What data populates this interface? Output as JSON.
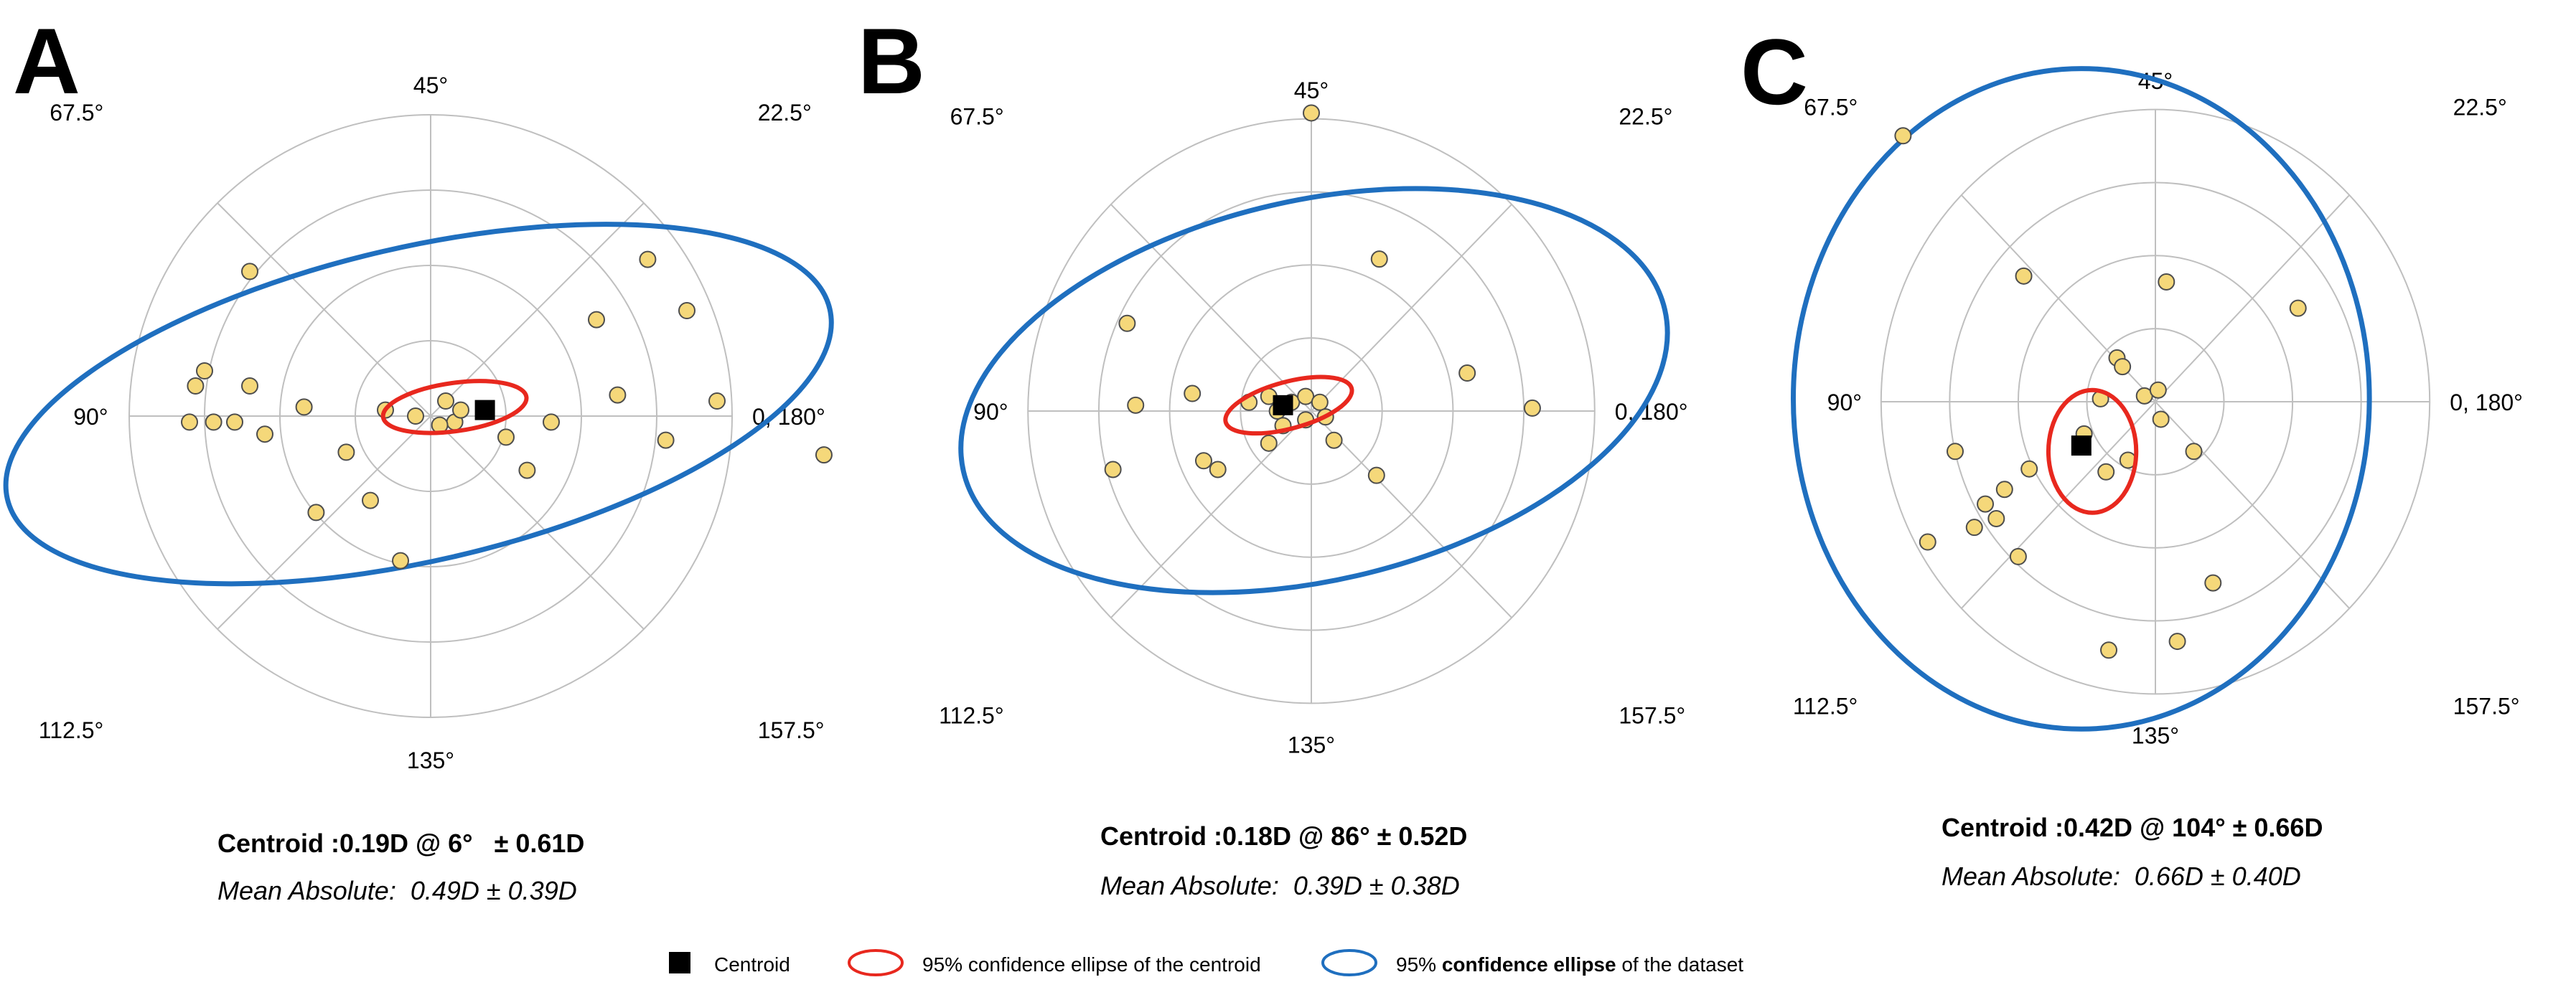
{
  "chart_data": [
    {
      "type": "scatter",
      "panel_label": "A",
      "angle_labels": [
        "0, 180°",
        "22.5°",
        "45°",
        "67.5°",
        "90°",
        "112.5°",
        "135°",
        "157.5°"
      ],
      "radial_ticks": [
        0.25,
        0.5,
        0.75,
        1.0
      ],
      "points": [
        [
          0.95,
          0.05
        ],
        [
          0.85,
          0.35
        ],
        [
          0.72,
          0.52
        ],
        [
          0.78,
          -0.08
        ],
        [
          0.62,
          0.07
        ],
        [
          0.55,
          0.32
        ],
        [
          0.4,
          -0.02
        ],
        [
          0.32,
          -0.18
        ],
        [
          0.25,
          -0.07
        ],
        [
          0.08,
          -0.02
        ],
        [
          0.05,
          0.05
        ],
        [
          -0.05,
          0.0
        ],
        [
          -0.15,
          0.02
        ],
        [
          -0.28,
          -0.12
        ],
        [
          -0.38,
          -0.32
        ],
        [
          -0.42,
          0.03
        ],
        [
          -0.55,
          -0.06
        ],
        [
          -0.6,
          0.1
        ],
        [
          -0.65,
          -0.02
        ],
        [
          -0.72,
          -0.02
        ],
        [
          -0.8,
          -0.02
        ],
        [
          -0.75,
          0.15
        ],
        [
          -0.78,
          0.1
        ],
        [
          -0.6,
          0.48
        ],
        [
          -0.1,
          -0.48
        ],
        [
          -0.2,
          -0.28
        ],
        [
          0.03,
          -0.03
        ],
        [
          0.1,
          0.02
        ]
      ],
      "centroid": {
        "x": 0.18,
        "y": 0.02
      },
      "centroid_ellipse": {
        "cx": 0.08,
        "cy": 0.03,
        "rx": 0.24,
        "ry": 0.08,
        "angle": 8
      },
      "dataset_ellipse": {
        "cx": -0.04,
        "cy": 0.04,
        "rx": 1.4,
        "ry": 0.52,
        "angle": 13
      },
      "caption_centroid": "Centroid :0.19D @ 6°   ± 0.61D",
      "caption_mean": "Mean Absolute:  0.49D ± 0.39D"
    },
    {
      "type": "scatter",
      "panel_label": "B",
      "angle_labels": [
        "0, 180°",
        "22.5°",
        "45°",
        "67.5°",
        "90°",
        "112.5°",
        "135°",
        "157.5°"
      ],
      "radial_ticks": [
        0.25,
        0.5,
        0.75,
        1.0
      ],
      "points": [
        [
          0.0,
          1.02
        ],
        [
          0.24,
          0.52
        ],
        [
          0.55,
          0.13
        ],
        [
          0.78,
          0.01
        ],
        [
          -0.65,
          0.3
        ],
        [
          -0.62,
          0.02
        ],
        [
          -0.42,
          0.06
        ],
        [
          -0.7,
          -0.2
        ],
        [
          -0.38,
          -0.17
        ],
        [
          -0.33,
          -0.2
        ],
        [
          -1.72,
          -0.15
        ],
        [
          -0.22,
          0.03
        ],
        [
          -0.15,
          0.05
        ],
        [
          -0.12,
          0.0
        ],
        [
          -0.1,
          -0.05
        ],
        [
          -0.07,
          0.03
        ],
        [
          -0.02,
          0.05
        ],
        [
          0.03,
          0.03
        ],
        [
          0.05,
          -0.02
        ],
        [
          -0.02,
          -0.03
        ],
        [
          0.08,
          -0.1
        ],
        [
          0.23,
          -0.22
        ],
        [
          -0.15,
          -0.11
        ]
      ],
      "centroid": {
        "x": -0.1,
        "y": 0.02
      },
      "centroid_ellipse": {
        "cx": -0.08,
        "cy": 0.02,
        "rx": 0.23,
        "ry": 0.08,
        "angle": 15
      },
      "dataset_ellipse": {
        "cx": 0.01,
        "cy": 0.07,
        "rx": 1.27,
        "ry": 0.65,
        "angle": 13
      },
      "caption_centroid": "Centroid :0.18D @ 86° ± 0.52D",
      "caption_mean": "Mean Absolute:  0.39D ± 0.38D"
    },
    {
      "type": "scatter",
      "panel_label": "C",
      "angle_labels": [
        "0, 180°",
        "22.5°",
        "45°",
        "67.5°",
        "90°",
        "112.5°",
        "135°",
        "157.5°"
      ],
      "radial_ticks": [
        0.25,
        0.5,
        0.75,
        1.0
      ],
      "points": [
        [
          -0.92,
          0.91
        ],
        [
          -0.48,
          0.43
        ],
        [
          0.04,
          0.41
        ],
        [
          0.52,
          0.32
        ],
        [
          -0.14,
          0.15
        ],
        [
          -0.12,
          0.12
        ],
        [
          -0.04,
          0.02
        ],
        [
          0.01,
          0.04
        ],
        [
          0.02,
          -0.06
        ],
        [
          0.14,
          -0.17
        ],
        [
          -0.73,
          -0.17
        ],
        [
          -0.55,
          -0.3
        ],
        [
          -0.62,
          -0.35
        ],
        [
          -0.58,
          -0.4
        ],
        [
          -0.66,
          -0.43
        ],
        [
          -0.83,
          -0.48
        ],
        [
          -0.5,
          -0.53
        ],
        [
          -0.46,
          -0.23
        ],
        [
          -0.2,
          0.01
        ],
        [
          -0.26,
          -0.11
        ],
        [
          -0.18,
          -0.24
        ],
        [
          -0.1,
          -0.2
        ],
        [
          0.21,
          -0.62
        ],
        [
          0.08,
          -0.82
        ],
        [
          -0.17,
          -0.85
        ]
      ],
      "centroid": {
        "x": -0.27,
        "y": -0.15
      },
      "centroid_ellipse": {
        "cx": -0.23,
        "cy": -0.17,
        "rx": 0.16,
        "ry": 0.21,
        "angle": 0
      },
      "dataset_ellipse": {
        "cx": -0.27,
        "cy": 0.01,
        "rx": 1.05,
        "ry": 1.13,
        "angle": 0
      },
      "caption_centroid": "Centroid :0.42D @ 104° ± 0.66D",
      "caption_mean": "Mean Absolute:  0.66D ± 0.40D"
    }
  ],
  "legend": {
    "placement": "bottom",
    "centroid_label": "Centroid",
    "centroid_ellipse_label": "95% confidence ellipse of the centroid",
    "dataset_ellipse_label_prefix": "95% ",
    "dataset_ellipse_label_bold": "confidence ellipse",
    "dataset_ellipse_label_suffix": " of the dataset"
  },
  "colors": {
    "grid": "#bfbfbf",
    "point_fill": "#f5d87a",
    "point_stroke": "#4d4d4d",
    "centroid": "#000000",
    "centroid_ellipse": "#e8281e",
    "dataset_ellipse": "#1f6fbf",
    "text": "#000000"
  }
}
